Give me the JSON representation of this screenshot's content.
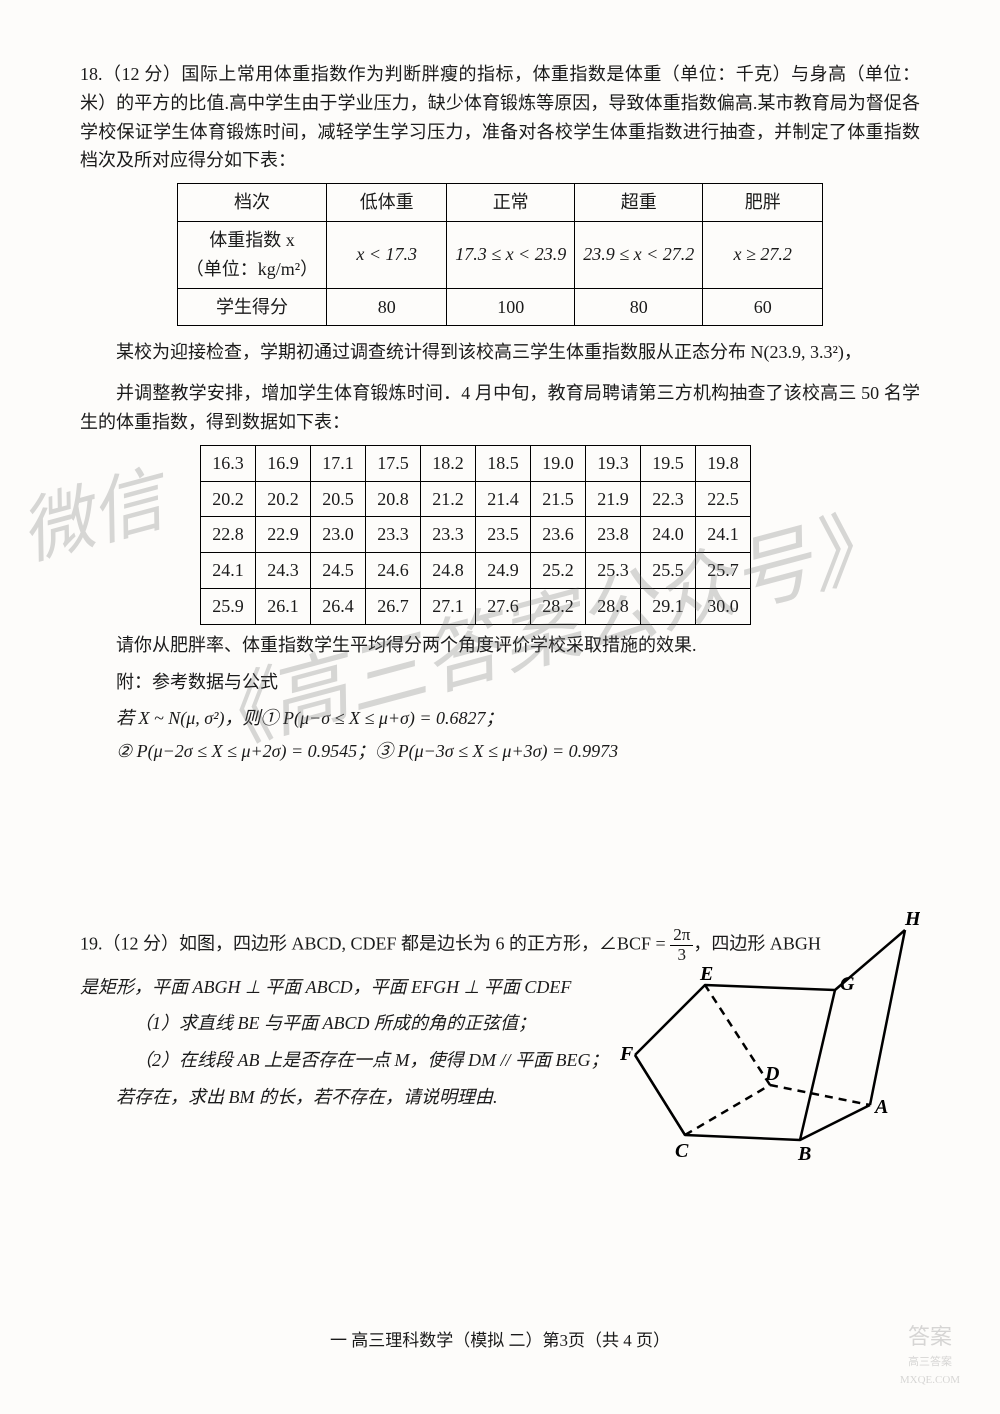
{
  "q18": {
    "intro": "18.（12 分）国际上常用体重指数作为判断胖瘦的指标，体重指数是体重（单位：千克）与身高（单位：米）的平方的比值.高中学生由于学业压力，缺少体育锻炼等原因，导致体重指数偏高.某市教育局为督促各学校保证学生体育锻炼时间，减轻学生学习压力，准备对各校学生体重指数进行抽查，并制定了体重指数档次及所对应得分如下表：",
    "table1": {
      "headers": [
        "档次",
        "低体重",
        "正常",
        "超重",
        "肥胖"
      ],
      "row1_label": "体重指数 x\n（单位：kg/m²）",
      "row1": [
        "x < 17.3",
        "17.3 ≤ x < 23.9",
        "23.9 ≤ x < 27.2",
        "x ≥ 27.2"
      ],
      "row2_label": "学生得分",
      "row2": [
        "80",
        "100",
        "80",
        "60"
      ]
    },
    "mid1": "某校为迎接检查，学期初通过调查统计得到该校高三学生体重指数服从正态分布 N(23.9, 3.3²)，",
    "mid2": "并调整教学安排，增加学生体育锻炼时间．4 月中旬，教育局聘请第三方机构抽查了该校高三 50 名学生的体重指数，得到数据如下表：",
    "table2": {
      "rows": [
        [
          "16.3",
          "16.9",
          "17.1",
          "17.5",
          "18.2",
          "18.5",
          "19.0",
          "19.3",
          "19.5",
          "19.8"
        ],
        [
          "20.2",
          "20.2",
          "20.5",
          "20.8",
          "21.2",
          "21.4",
          "21.5",
          "21.9",
          "22.3",
          "22.5"
        ],
        [
          "22.8",
          "22.9",
          "23.0",
          "23.3",
          "23.3",
          "23.5",
          "23.6",
          "23.8",
          "24.0",
          "24.1"
        ],
        [
          "24.1",
          "24.3",
          "24.5",
          "24.6",
          "24.8",
          "24.9",
          "25.2",
          "25.3",
          "25.5",
          "25.7"
        ],
        [
          "25.9",
          "26.1",
          "26.4",
          "26.7",
          "27.1",
          "27.6",
          "28.2",
          "28.8",
          "29.1",
          "30.0"
        ]
      ]
    },
    "ask": "请你从肥胖率、体重指数学生平均得分两个角度评价学校采取措施的效果.",
    "ref_label": "附：参考数据与公式",
    "f1": "若 X ~ N(μ, σ²)，则① P(μ−σ ≤ X ≤ μ+σ) = 0.6827；",
    "f2": "② P(μ−2σ ≤ X ≤ μ+2σ) = 0.9545；③ P(μ−3σ ≤ X ≤ μ+3σ) = 0.9973"
  },
  "q19": {
    "intro_a": "19.（12 分）如图，四边形 ABCD, CDEF 都是边长为 6 的正方形，∠BCF = ",
    "frac_num": "2π",
    "frac_den": "3",
    "intro_b": "，四边形 ABGH",
    "line2": "是矩形，平面 ABGH ⊥ 平面 ABCD，平面 EFGH ⊥ 平面 CDEF",
    "part1": "（1）求直线 BE 与平面 ABCD 所成的角的正弦值；",
    "part2": "（2）在线段 AB 上是否存在一点 M，使得 DM // 平面 BEG；",
    "part3": "若存在，求出 BM 的长，若不存在，请说明理由.",
    "labels": {
      "A": "A",
      "B": "B",
      "C": "C",
      "D": "D",
      "E": "E",
      "F": "F",
      "G": "G",
      "H": "H"
    }
  },
  "footer": "一 高三理科数学（模拟 二）第3页（共 4 页）",
  "watermark": {
    "w1": "微信",
    "w2": "《高三答案公众号》"
  },
  "stamp": {
    "l1": "答案",
    "l2": "高三答案",
    "l3": "MXQE.COM"
  },
  "colors": {
    "text": "#1a1a1a",
    "bg": "#fdfcfa",
    "border": "#000000",
    "watermark": "rgba(100,100,100,0.25)"
  }
}
